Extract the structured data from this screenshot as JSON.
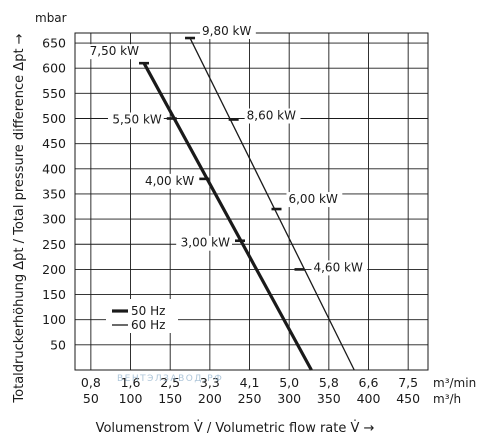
{
  "chart_data": {
    "type": "line",
    "y_unit": "mbar",
    "ylabel": "Totaldruckerhöhung Δpt / Total pressure difference Δpt →",
    "xlabel": "Volumenstrom V̇ / Volumetric flow rate V̇ →",
    "x_unit_top": "m³/min",
    "x_unit_bottom": "m³/h",
    "y_ticks": [
      50,
      100,
      150,
      200,
      250,
      300,
      350,
      400,
      450,
      500,
      550,
      600,
      650
    ],
    "x_ticks_m3h": [
      50,
      100,
      150,
      200,
      250,
      300,
      350,
      400,
      450
    ],
    "x_ticks_m3min": [
      "0,8",
      "1,6",
      "2,5",
      "3,3",
      "4,1",
      "5,0",
      "5,8",
      "6,6",
      "7,5"
    ],
    "xlim": [
      30,
      475
    ],
    "ylim": [
      0,
      670
    ],
    "grid": true,
    "legend_position": "bottom-left",
    "watermark": "ВЕНТЭЛЗАВОД.РФ",
    "series": [
      {
        "name": "50 Hz",
        "line_weight": "thick",
        "x": [
          117,
          328
        ],
        "y": [
          610,
          0
        ],
        "power_points": [
          {
            "label": "7,50 kW",
            "x": 117,
            "y": 610
          },
          {
            "label": "5,50 kW",
            "x": 152,
            "y": 500
          },
          {
            "label": "4,00 kW",
            "x": 193,
            "y": 380
          },
          {
            "label": "3,00 kW",
            "x": 238,
            "y": 257
          }
        ]
      },
      {
        "name": "60 Hz",
        "line_weight": "thin",
        "x": [
          175,
          382
        ],
        "y": [
          660,
          0
        ],
        "power_points": [
          {
            "label": "9,80 kW",
            "x": 175,
            "y": 660
          },
          {
            "label": "8,60 kW",
            "x": 230,
            "y": 498
          },
          {
            "label": "6,00 kW",
            "x": 284,
            "y": 320
          },
          {
            "label": "4,60 kW",
            "x": 313,
            "y": 200
          }
        ]
      }
    ]
  }
}
